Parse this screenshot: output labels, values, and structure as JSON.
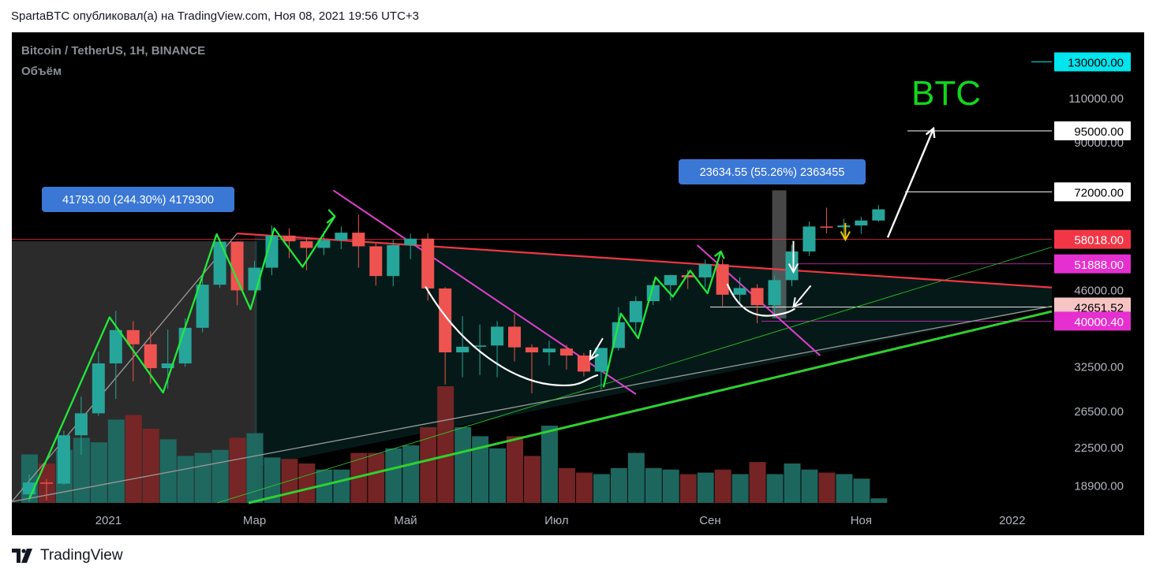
{
  "header": {
    "publisher_line": "SpartaBTC опубликовал(а) на TradingView.com, Ноя 08, 2021 19:56 UTC+3"
  },
  "legend": {
    "symbol_line": "Bitcoin / TetherUS, 1H, BINANCE",
    "volume_label": "Объём"
  },
  "footer": {
    "logo_text": "TradingView"
  },
  "colors": {
    "bull": "#26a69a",
    "bear": "#ef5350",
    "resistance": "#f23645",
    "support": "#2fd12f",
    "magenta": "#e040d0",
    "annotation_green": "#22e83a",
    "bull_volume": "#1f6b63",
    "bear_volume": "#7a2626"
  },
  "chart_data": {
    "type": "candlestick",
    "title": "BTC",
    "y_scale": "log",
    "ylim": [
      17500,
      135000
    ],
    "x_axis": {
      "start": "2020-11-23",
      "end": "2022-01-17",
      "labels": [
        {
          "date": "2021-01-01",
          "text": "2021"
        },
        {
          "date": "2021-03-01",
          "text": "Мар"
        },
        {
          "date": "2021-05-01",
          "text": "Май"
        },
        {
          "date": "2021-07-01",
          "text": "Июл"
        },
        {
          "date": "2021-09-01",
          "text": "Сен"
        },
        {
          "date": "2021-11-01",
          "text": "Ноя"
        },
        {
          "date": "2022-01-01",
          "text": "2022"
        }
      ]
    },
    "y_ticks": [
      110000,
      90000,
      46000,
      32500,
      26500,
      22500,
      18900
    ],
    "price_tags": [
      {
        "value": 130000,
        "label": "130000.00",
        "bg": "#00e5ee",
        "fg": "#000000"
      },
      {
        "value": 95000,
        "label": "95000.00",
        "bg": "#ffffff",
        "fg": "#000000"
      },
      {
        "value": 72000,
        "label": "72000.00",
        "bg": "#ffffff",
        "fg": "#000000"
      },
      {
        "value": 58018,
        "label": "58018.00",
        "bg": "#f23645",
        "fg": "#ffffff"
      },
      {
        "value": 51888,
        "label": "51888.00",
        "bg": "#e62fd0",
        "fg": "#ffffff"
      },
      {
        "value": 42651.52,
        "label": "42651.52",
        "bg": "#f7c4c4",
        "fg": "#000000"
      },
      {
        "value": 40000.4,
        "label": "40000.40",
        "bg": "#e62fd0",
        "fg": "#ffffff"
      }
    ],
    "candles": [
      {
        "t": "2020-11-30",
        "o": 18200,
        "h": 19900,
        "l": 17600,
        "c": 19200
      },
      {
        "t": "2020-12-07",
        "o": 19200,
        "h": 19500,
        "l": 17700,
        "c": 19100
      },
      {
        "t": "2020-12-14",
        "o": 19100,
        "h": 24300,
        "l": 19000,
        "c": 23800
      },
      {
        "t": "2020-12-21",
        "o": 23800,
        "h": 28400,
        "l": 21800,
        "c": 26300
      },
      {
        "t": "2020-12-28",
        "o": 26300,
        "h": 34800,
        "l": 26000,
        "c": 33000
      },
      {
        "t": "2021-01-04",
        "o": 33000,
        "h": 41900,
        "l": 28100,
        "c": 38400
      },
      {
        "t": "2021-01-11",
        "o": 38400,
        "h": 40000,
        "l": 30400,
        "c": 36000
      },
      {
        "t": "2021-01-18",
        "o": 36000,
        "h": 38200,
        "l": 30100,
        "c": 32300
      },
      {
        "t": "2021-01-25",
        "o": 32300,
        "h": 38500,
        "l": 29400,
        "c": 33000
      },
      {
        "t": "2021-02-01",
        "o": 33000,
        "h": 40500,
        "l": 32500,
        "c": 38800
      },
      {
        "t": "2021-02-08",
        "o": 38800,
        "h": 49000,
        "l": 38000,
        "c": 47200
      },
      {
        "t": "2021-02-15",
        "o": 47200,
        "h": 58300,
        "l": 46500,
        "c": 57400
      },
      {
        "t": "2021-02-22",
        "o": 57400,
        "h": 57600,
        "l": 43000,
        "c": 46000
      },
      {
        "t": "2021-03-01",
        "o": 46000,
        "h": 52600,
        "l": 45000,
        "c": 51000
      },
      {
        "t": "2021-03-08",
        "o": 51000,
        "h": 61800,
        "l": 49300,
        "c": 59000
      },
      {
        "t": "2021-03-15",
        "o": 59000,
        "h": 61000,
        "l": 53300,
        "c": 57500
      },
      {
        "t": "2021-03-22",
        "o": 57500,
        "h": 58400,
        "l": 50400,
        "c": 55800
      },
      {
        "t": "2021-03-29",
        "o": 55800,
        "h": 60200,
        "l": 54000,
        "c": 57800
      },
      {
        "t": "2021-04-05",
        "o": 57800,
        "h": 61500,
        "l": 55500,
        "c": 59800
      },
      {
        "t": "2021-04-12",
        "o": 59800,
        "h": 64900,
        "l": 51000,
        "c": 56200
      },
      {
        "t": "2021-04-19",
        "o": 56200,
        "h": 57000,
        "l": 47000,
        "c": 49100
      },
      {
        "t": "2021-04-26",
        "o": 49100,
        "h": 57900,
        "l": 46900,
        "c": 56500
      },
      {
        "t": "2021-05-03",
        "o": 56500,
        "h": 59500,
        "l": 53000,
        "c": 58200
      },
      {
        "t": "2021-05-10",
        "o": 58200,
        "h": 59600,
        "l": 43900,
        "c": 46400
      },
      {
        "t": "2021-05-17",
        "o": 46400,
        "h": 46700,
        "l": 30000,
        "c": 34700
      },
      {
        "t": "2021-05-24",
        "o": 34700,
        "h": 40900,
        "l": 31000,
        "c": 35600
      },
      {
        "t": "2021-05-31",
        "o": 35600,
        "h": 39400,
        "l": 31300,
        "c": 35800
      },
      {
        "t": "2021-06-07",
        "o": 35800,
        "h": 40000,
        "l": 31000,
        "c": 39000
      },
      {
        "t": "2021-06-14",
        "o": 39000,
        "h": 41300,
        "l": 33300,
        "c": 35500
      },
      {
        "t": "2021-06-21",
        "o": 35500,
        "h": 36000,
        "l": 28800,
        "c": 34700
      },
      {
        "t": "2021-06-28",
        "o": 34700,
        "h": 36600,
        "l": 32700,
        "c": 35300
      },
      {
        "t": "2021-07-05",
        "o": 35300,
        "h": 35900,
        "l": 32100,
        "c": 34200
      },
      {
        "t": "2021-07-12",
        "o": 34200,
        "h": 34600,
        "l": 31100,
        "c": 31800
      },
      {
        "t": "2021-07-19",
        "o": 31800,
        "h": 35400,
        "l": 29300,
        "c": 35400
      },
      {
        "t": "2021-07-26",
        "o": 35400,
        "h": 42600,
        "l": 35000,
        "c": 39800
      },
      {
        "t": "2021-08-02",
        "o": 39800,
        "h": 44800,
        "l": 37600,
        "c": 43800
      },
      {
        "t": "2021-08-09",
        "o": 43800,
        "h": 48000,
        "l": 43000,
        "c": 47100
      },
      {
        "t": "2021-08-16",
        "o": 47100,
        "h": 49400,
        "l": 43900,
        "c": 49300
      },
      {
        "t": "2021-08-23",
        "o": 49300,
        "h": 50500,
        "l": 46300,
        "c": 48800
      },
      {
        "t": "2021-08-30",
        "o": 48800,
        "h": 52900,
        "l": 46600,
        "c": 51800
      },
      {
        "t": "2021-09-06",
        "o": 51800,
        "h": 52900,
        "l": 42800,
        "c": 45100
      },
      {
        "t": "2021-09-13",
        "o": 45100,
        "h": 48800,
        "l": 43400,
        "c": 46500
      },
      {
        "t": "2021-09-20",
        "o": 46500,
        "h": 47300,
        "l": 39600,
        "c": 43000
      },
      {
        "t": "2021-09-27",
        "o": 43000,
        "h": 49200,
        "l": 40700,
        "c": 48200
      },
      {
        "t": "2021-10-04",
        "o": 48200,
        "h": 56600,
        "l": 46900,
        "c": 54900
      },
      {
        "t": "2021-10-11",
        "o": 54900,
        "h": 62900,
        "l": 53800,
        "c": 61500
      },
      {
        "t": "2021-10-18",
        "o": 61500,
        "h": 67000,
        "l": 59600,
        "c": 61300
      },
      {
        "t": "2021-10-25",
        "o": 61300,
        "h": 63700,
        "l": 58000,
        "c": 61800
      },
      {
        "t": "2021-11-01",
        "o": 61800,
        "h": 64300,
        "l": 59500,
        "c": 63200
      },
      {
        "t": "2021-11-08",
        "o": 63200,
        "h": 67800,
        "l": 62800,
        "c": 66500
      }
    ],
    "volume": [
      3.2,
      2.6,
      3.5,
      4.3,
      4.0,
      5.5,
      5.8,
      4.9,
      4.2,
      3.1,
      3.3,
      3.5,
      4.3,
      4.6,
      3.0,
      2.9,
      2.6,
      2.2,
      2.2,
      3.3,
      3.3,
      3.6,
      3.8,
      5.0,
      7.7,
      5.0,
      4.4,
      3.6,
      4.4,
      3.1,
      5.1,
      2.3,
      2.0,
      1.9,
      2.3,
      3.3,
      2.3,
      2.2,
      1.9,
      2.0,
      2.2,
      1.9,
      2.7,
      1.9,
      2.6,
      2.2,
      2.0,
      1.9,
      1.6,
      0.3
    ],
    "annotations": [
      {
        "label": "41793.00 (244.30%) 4179300",
        "bg": "#3b78d6",
        "fg": "#ffffff"
      },
      {
        "label": "23634.55 (55.26%) 2363455",
        "bg": "#3b78d6",
        "fg": "#ffffff"
      }
    ]
  }
}
